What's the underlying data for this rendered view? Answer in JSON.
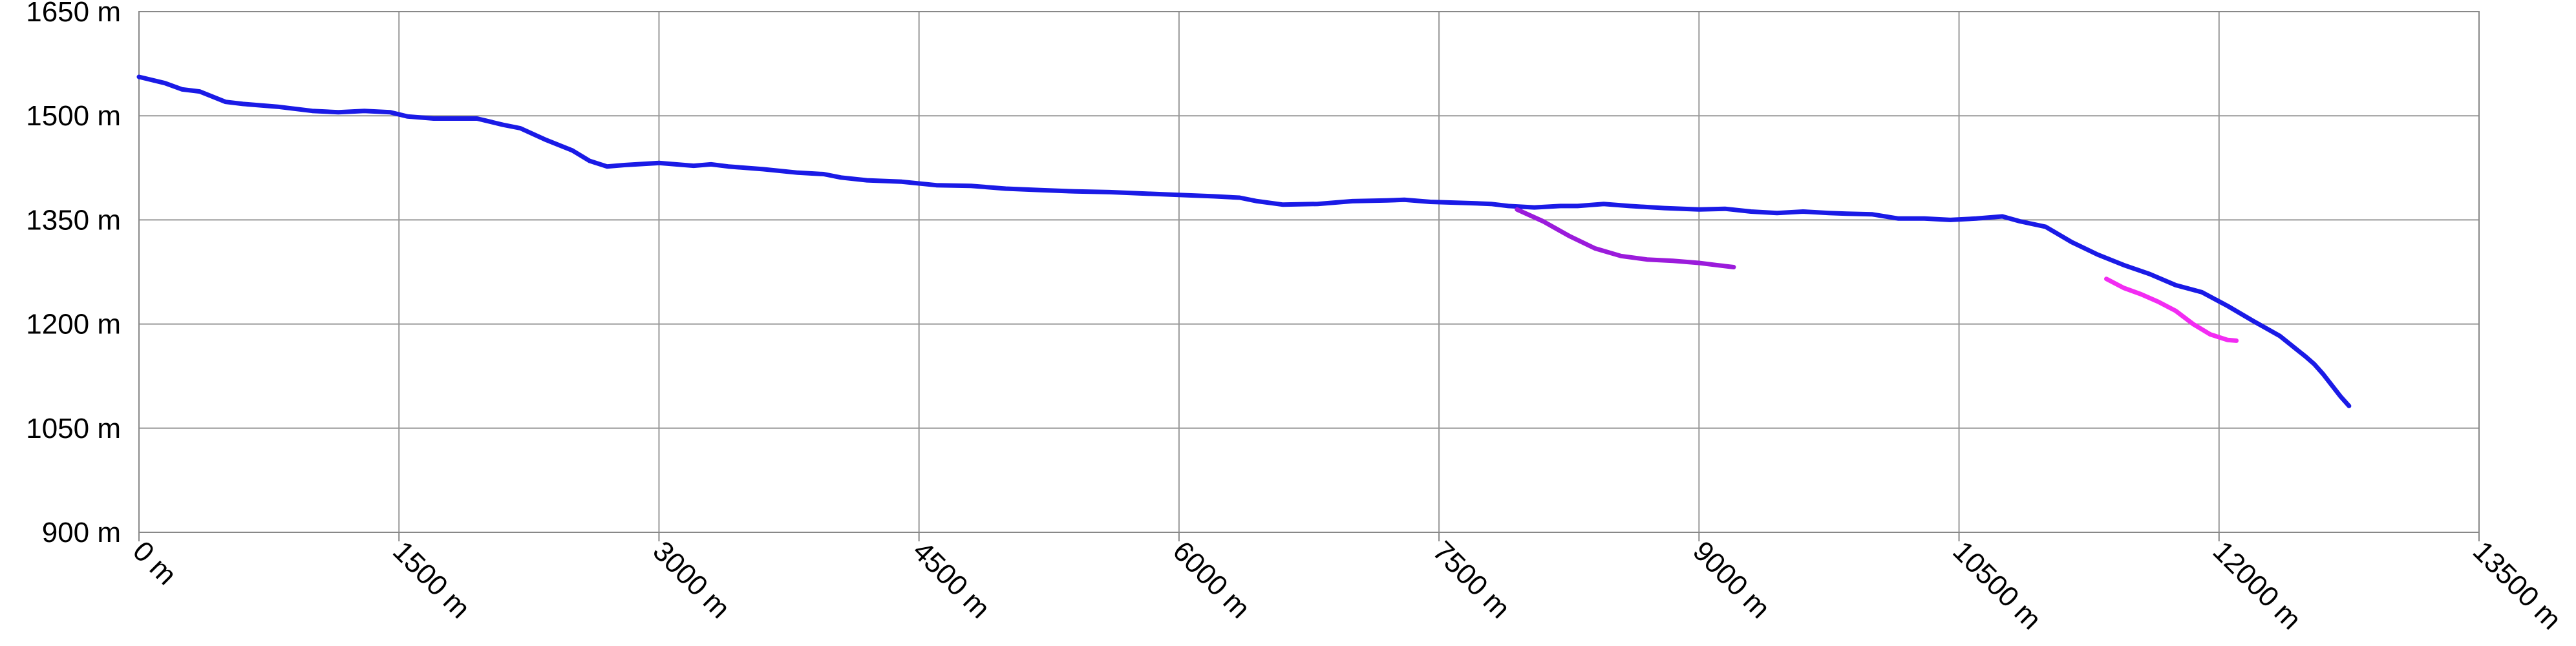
{
  "chart_data": {
    "type": "line",
    "xlim": [
      0,
      13500
    ],
    "ylim": [
      900,
      1650
    ],
    "x_ticks": [
      0,
      1500,
      3000,
      4500,
      6000,
      7500,
      9000,
      10500,
      12000,
      13500
    ],
    "x_tick_labels": [
      "0 m",
      "1500 m",
      "3000 m",
      "4500 m",
      "6000 m",
      "7500 m",
      "9000 m",
      "10500 m",
      "12000 m",
      "13500 m"
    ],
    "y_ticks": [
      900,
      1050,
      1200,
      1350,
      1500,
      1650
    ],
    "y_tick_labels": [
      "900 m",
      "1050 m",
      "1200 m",
      "1350 m",
      "1500 m",
      "1650 m"
    ],
    "grid": true,
    "series": [
      {
        "color": "#1a1ae6",
        "points": [
          [
            0,
            1556
          ],
          [
            150,
            1547
          ],
          [
            250,
            1538
          ],
          [
            350,
            1535
          ],
          [
            500,
            1520
          ],
          [
            600,
            1517
          ],
          [
            800,
            1513
          ],
          [
            1000,
            1507
          ],
          [
            1150,
            1505
          ],
          [
            1300,
            1507
          ],
          [
            1450,
            1505
          ],
          [
            1550,
            1499
          ],
          [
            1700,
            1496
          ],
          [
            1850,
            1496
          ],
          [
            1950,
            1496
          ],
          [
            2000,
            1493
          ],
          [
            2100,
            1487
          ],
          [
            2200,
            1482
          ],
          [
            2350,
            1465
          ],
          [
            2500,
            1450
          ],
          [
            2600,
            1435
          ],
          [
            2700,
            1427
          ],
          [
            2800,
            1429
          ],
          [
            3000,
            1432
          ],
          [
            3200,
            1428
          ],
          [
            3300,
            1430
          ],
          [
            3400,
            1427
          ],
          [
            3600,
            1423
          ],
          [
            3800,
            1418
          ],
          [
            3950,
            1416
          ],
          [
            4050,
            1411
          ],
          [
            4200,
            1407
          ],
          [
            4400,
            1405
          ],
          [
            4600,
            1400
          ],
          [
            4800,
            1399
          ],
          [
            5000,
            1395
          ],
          [
            5200,
            1393
          ],
          [
            5400,
            1391
          ],
          [
            5600,
            1390
          ],
          [
            5800,
            1388
          ],
          [
            6000,
            1386
          ],
          [
            6200,
            1384
          ],
          [
            6350,
            1382
          ],
          [
            6450,
            1377
          ],
          [
            6600,
            1372
          ],
          [
            6800,
            1373
          ],
          [
            7000,
            1377
          ],
          [
            7200,
            1378
          ],
          [
            7300,
            1379
          ],
          [
            7450,
            1376
          ],
          [
            7700,
            1374
          ],
          [
            7800,
            1373
          ],
          [
            7900,
            1370
          ],
          [
            8050,
            1368
          ],
          [
            8200,
            1370
          ],
          [
            8300,
            1370
          ],
          [
            8450,
            1373
          ],
          [
            8600,
            1370
          ],
          [
            8800,
            1367
          ],
          [
            9000,
            1365
          ],
          [
            9150,
            1366
          ],
          [
            9300,
            1362
          ],
          [
            9450,
            1360
          ],
          [
            9600,
            1362
          ],
          [
            9750,
            1360
          ],
          [
            9850,
            1359
          ],
          [
            10000,
            1358
          ],
          [
            10150,
            1352
          ],
          [
            10300,
            1352
          ],
          [
            10450,
            1350
          ],
          [
            10600,
            1352
          ],
          [
            10750,
            1355
          ],
          [
            10850,
            1348
          ],
          [
            11000,
            1340
          ],
          [
            11150,
            1318
          ],
          [
            11300,
            1300
          ],
          [
            11450,
            1285
          ],
          [
            11600,
            1272
          ],
          [
            11750,
            1256
          ],
          [
            11900,
            1246
          ],
          [
            12050,
            1226
          ],
          [
            12200,
            1204
          ],
          [
            12350,
            1183
          ],
          [
            12450,
            1163
          ],
          [
            12500,
            1153
          ],
          [
            12550,
            1142
          ],
          [
            12600,
            1128
          ],
          [
            12650,
            1112
          ],
          [
            12700,
            1096
          ],
          [
            12750,
            1082
          ]
        ]
      },
      {
        "color": "#9b1bdb",
        "points": [
          [
            7950,
            1365
          ],
          [
            8100,
            1348
          ],
          [
            8250,
            1327
          ],
          [
            8400,
            1309
          ],
          [
            8550,
            1298
          ],
          [
            8700,
            1293
          ],
          [
            8850,
            1291
          ],
          [
            9000,
            1288
          ],
          [
            9100,
            1285
          ],
          [
            9200,
            1282
          ]
        ]
      },
      {
        "color": "#f22cf2",
        "points": [
          [
            11350,
            1265
          ],
          [
            11450,
            1252
          ],
          [
            11550,
            1243
          ],
          [
            11650,
            1232
          ],
          [
            11750,
            1219
          ],
          [
            11850,
            1200
          ],
          [
            11950,
            1185
          ],
          [
            12050,
            1177
          ],
          [
            12100,
            1176
          ]
        ]
      }
    ]
  }
}
